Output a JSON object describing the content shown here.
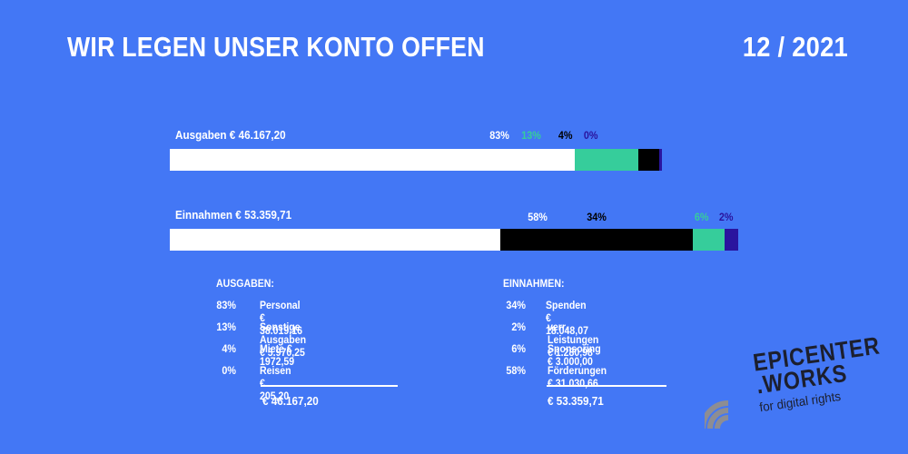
{
  "header": {
    "title": "WIR LEGEN UNSER KONTO OFFEN",
    "date": "12 / 2021"
  },
  "chart_data": {
    "type": "bar",
    "orientation": "horizontal-stacked",
    "bars": [
      {
        "label": "Ausgaben € 46.167,20",
        "total": 46167.2,
        "segments": [
          {
            "name": "Personal",
            "value": 38019.16,
            "share": 0.83,
            "pct_label": "83%",
            "color": "#ffffff"
          },
          {
            "name": "Sonstige Ausgaben",
            "value": 5970.25,
            "share": 0.13,
            "pct_label": "13%",
            "color": "#36cd9b"
          },
          {
            "name": "Miete",
            "value": 1972.59,
            "share": 0.04,
            "pct_label": "4%",
            "color": "#000000"
          },
          {
            "name": "Reisen",
            "value": 205.2,
            "share": 0.0,
            "pct_label": "0%",
            "color": "#2a149e"
          }
        ]
      },
      {
        "label": "Einnahmen € 53.359,71",
        "total": 53359.71,
        "segments": [
          {
            "name": "Förderungen",
            "value": 31030.66,
            "share": 0.58,
            "pct_label": "58%",
            "color": "#ffffff"
          },
          {
            "name": "Spenden",
            "value": 18048.07,
            "share": 0.34,
            "pct_label": "34%",
            "color": "#000000"
          },
          {
            "name": "Sponsoring",
            "value": 3000.0,
            "share": 0.06,
            "pct_label": "6%",
            "color": "#36cd9b"
          },
          {
            "name": "verr. Leistungen",
            "value": 1280.98,
            "share": 0.02,
            "pct_label": "2%",
            "color": "#2a149e"
          }
        ]
      }
    ]
  },
  "breakdown": {
    "ausgaben": {
      "heading": "AUSGABEN:",
      "rows": [
        {
          "pct": "83%",
          "label": "Personal €  38.019,16"
        },
        {
          "pct": "13%",
          "label": "Sonstige Ausgaben € 5.970,25"
        },
        {
          "pct": "4%",
          "label": "Miete € 1972,59"
        },
        {
          "pct": "0%",
          "label": "Reisen € 205,20"
        }
      ],
      "total": "€ 46.167,20"
    },
    "einnahmen": {
      "heading": "EINNAHMEN:",
      "rows": [
        {
          "pct": "34%",
          "label": "Spenden  € 18.048,07"
        },
        {
          "pct": "2%",
          "label": "verr. Leistungen € 1.280,98"
        },
        {
          "pct": "6%",
          "label": "Sponsoring € 3.000,00"
        },
        {
          "pct": "58%",
          "label": "Förderungen  € 31.030,66"
        }
      ],
      "total": "€ 53.359,71"
    }
  },
  "logo": {
    "line1": "EPICENTER",
    "line2": ".WORKS",
    "line3": "for digital rights",
    "icon": "wifi-signal-icon"
  },
  "colors": {
    "background": "#4377f5",
    "white": "#ffffff",
    "green": "#36cd9b",
    "black": "#000000",
    "indigo": "#2a149e",
    "logo_dark": "#1c1f2e",
    "logo_grey": "#8d8d93"
  }
}
